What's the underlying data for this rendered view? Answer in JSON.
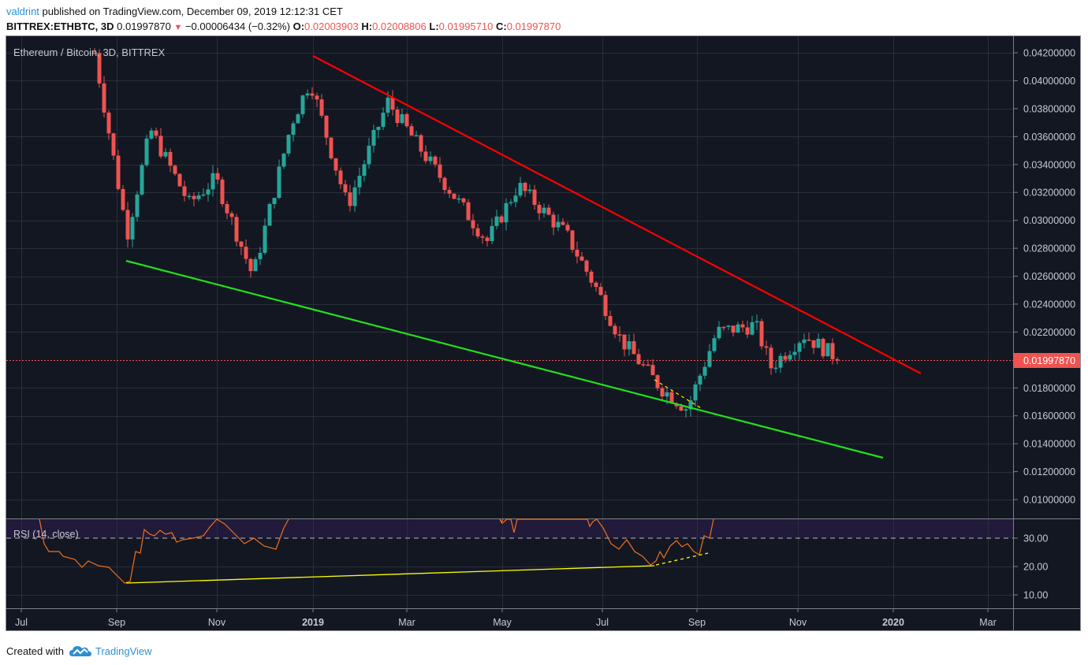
{
  "header": {
    "author": "valdrint",
    "published_text": "published on TradingView.com, December 09, 2019 12:12:31 CET",
    "symbol": "BITTREX:ETHBTC, 3D",
    "last_price": "0.01997870",
    "change_arrow": "▼",
    "change": "−0.00006434 (−0.32%)",
    "ohlc": {
      "o_label": "O:",
      "o": "0.02003903",
      "h_label": "H:",
      "h": "0.02008806",
      "l_label": "L:",
      "l": "0.01995710",
      "c_label": "C:",
      "c": "0.01997870"
    }
  },
  "chart": {
    "title": "Ethereum / Bitcoin, 3D, BITTREX",
    "rsi_label": "RSI (14, close)",
    "current_price_tag": "0.01997870",
    "colors": {
      "background": "#131722",
      "up": "#26a69a",
      "down": "#ef5350",
      "resistance_line": "#ff0000",
      "support_line": "#22e01a",
      "rsi_line": "#f0701a",
      "rsi_trendline": "#ffff00",
      "rsi_band": "#211a3a"
    }
  },
  "footer": {
    "created_with": "Created with",
    "brand": "TradingView"
  },
  "chart_data": {
    "type": "candlestick",
    "title": "Ethereum / Bitcoin, 3D, BITTREX",
    "xlabel": "",
    "ylabel": "ETH/BTC",
    "x_ticks": [
      "Jul",
      "Sep",
      "Nov",
      "2019",
      "Mar",
      "May",
      "Jul",
      "Sep",
      "Nov",
      "2020",
      "Mar"
    ],
    "y_ticks": [
      "0.04200000",
      "0.04000000",
      "0.03800000",
      "0.03600000",
      "0.03400000",
      "0.03200000",
      "0.03000000",
      "0.02800000",
      "0.02600000",
      "0.02400000",
      "0.02200000",
      "0.01800000",
      "0.01600000",
      "0.01400000",
      "0.01200000",
      "0.01000000"
    ],
    "ylim": [
      0.0095,
      0.0425
    ],
    "current_price": 0.0199787,
    "approx_close_path": [
      {
        "date": "2018-08",
        "close": 0.042
      },
      {
        "date": "2018-09-05",
        "close": 0.029
      },
      {
        "date": "2018-09-20",
        "close": 0.0365
      },
      {
        "date": "2018-10-15",
        "close": 0.0312
      },
      {
        "date": "2018-11-01",
        "close": 0.033
      },
      {
        "date": "2018-11-25",
        "close": 0.026
      },
      {
        "date": "2018-12-20",
        "close": 0.037
      },
      {
        "date": "2019-01-01",
        "close": 0.04
      },
      {
        "date": "2019-01-25",
        "close": 0.031
      },
      {
        "date": "2019-02-20",
        "close": 0.0385
      },
      {
        "date": "2019-03-20",
        "close": 0.034
      },
      {
        "date": "2019-04-25",
        "close": 0.0285
      },
      {
        "date": "2019-05-15",
        "close": 0.0325
      },
      {
        "date": "2019-06-15",
        "close": 0.029
      },
      {
        "date": "2019-07-05",
        "close": 0.025
      },
      {
        "date": "2019-07-20",
        "close": 0.0215
      },
      {
        "date": "2019-08-15",
        "close": 0.018
      },
      {
        "date": "2019-09-01",
        "close": 0.0165
      },
      {
        "date": "2019-09-20",
        "close": 0.022
      },
      {
        "date": "2019-10-15",
        "close": 0.0225
      },
      {
        "date": "2019-10-25",
        "close": 0.0195
      },
      {
        "date": "2019-11-15",
        "close": 0.0218
      },
      {
        "date": "2019-12-09",
        "close": 0.0199787
      }
    ],
    "annotations": [
      {
        "type": "trendline",
        "name": "descending resistance",
        "color": "#ff0000",
        "from": [
          "2019-01-01",
          0.0418
        ],
        "to": [
          "2020-01-20",
          0.0191
        ]
      },
      {
        "type": "trendline",
        "name": "descending support",
        "color": "#22e01a",
        "from": [
          "2018-09-07",
          0.027
        ],
        "to": [
          "2020-01-15",
          0.013
        ]
      },
      {
        "type": "dashed-trendline",
        "name": "price lower highs",
        "color": "#ffd700",
        "from": [
          "2019-08-10",
          0.0186
        ],
        "to": [
          "2019-09-05",
          0.0163
        ]
      }
    ],
    "rsi": {
      "label": "RSI (14, close)",
      "y_ticks": [
        "30.00",
        "20.00",
        "10.00"
      ],
      "level_line": 30,
      "trendline_main": {
        "from": [
          "2018-09-07",
          14
        ],
        "to": [
          "2019-08-12",
          20.5
        ]
      },
      "trendline_divergence": {
        "from": [
          "2019-08-12",
          20.5
        ],
        "to": [
          "2019-09-05",
          24.5
        ]
      },
      "lows": [
        {
          "date": "2018-09-07",
          "value": 13.5
        },
        {
          "date": "2019-08-13",
          "value": 20.0
        },
        {
          "date": "2019-09-03",
          "value": 24.0
        }
      ]
    }
  }
}
